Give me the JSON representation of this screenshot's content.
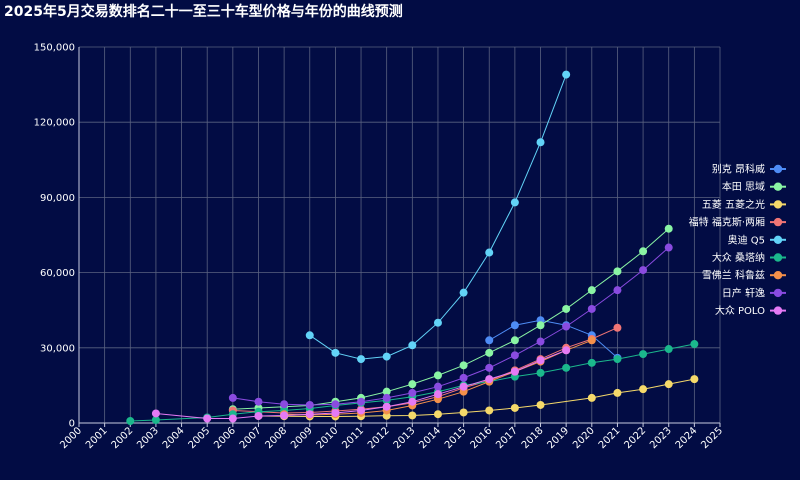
{
  "chart_data": {
    "type": "line",
    "title": "2025年5月交易数排名二十一至三十车型价格与年份的曲线预测",
    "xlabel": "",
    "ylabel": "",
    "xlim": [
      2000,
      2025
    ],
    "ylim": [
      0,
      150000
    ],
    "x_ticks": [
      2000,
      2001,
      2002,
      2003,
      2004,
      2005,
      2006,
      2007,
      2008,
      2009,
      2010,
      2011,
      2012,
      2013,
      2014,
      2015,
      2016,
      2017,
      2018,
      2019,
      2020,
      2021,
      2022,
      2023,
      2024,
      2025
    ],
    "y_ticks": [
      {
        "value": 0,
        "label": "0"
      },
      {
        "value": 30000,
        "label": "30,000"
      },
      {
        "value": 60000,
        "label": "60,000"
      },
      {
        "value": 90000,
        "label": "90,000"
      },
      {
        "value": 120000,
        "label": "120,000"
      },
      {
        "value": 150000,
        "label": "150,000"
      }
    ],
    "grid": true,
    "legend_position": "right",
    "series": [
      {
        "name": "别克 昂科威",
        "color": "#4e8cf5",
        "points": [
          [
            2016,
            33000
          ],
          [
            2017,
            39000
          ],
          [
            2018,
            41000
          ],
          [
            2019,
            39000
          ],
          [
            2020,
            35000
          ],
          [
            2021,
            26000
          ]
        ]
      },
      {
        "name": "本田 思域",
        "color": "#8af5a4",
        "points": [
          [
            2006,
            5500
          ],
          [
            2007,
            6000
          ],
          [
            2008,
            6500
          ],
          [
            2009,
            7000
          ],
          [
            2010,
            8500
          ],
          [
            2011,
            10000
          ],
          [
            2012,
            12500
          ],
          [
            2013,
            15500
          ],
          [
            2014,
            19000
          ],
          [
            2015,
            23000
          ],
          [
            2016,
            28000
          ],
          [
            2017,
            33000
          ],
          [
            2018,
            39000
          ],
          [
            2019,
            45500
          ],
          [
            2020,
            53000
          ],
          [
            2021,
            60500
          ],
          [
            2022,
            68500
          ],
          [
            2023,
            77500
          ]
        ]
      },
      {
        "name": "五菱 五菱之光",
        "color": "#f5d96a",
        "points": [
          [
            2007,
            2800
          ],
          [
            2008,
            2700
          ],
          [
            2009,
            2600
          ],
          [
            2010,
            2600
          ],
          [
            2011,
            2700
          ],
          [
            2012,
            2900
          ],
          [
            2013,
            3000
          ],
          [
            2014,
            3500
          ],
          [
            2015,
            4200
          ],
          [
            2016,
            5000
          ],
          [
            2017,
            6000
          ],
          [
            2018,
            7200
          ],
          [
            2020,
            10000
          ],
          [
            2021,
            12000
          ],
          [
            2022,
            13500
          ],
          [
            2023,
            15500
          ],
          [
            2024,
            17500
          ]
        ]
      },
      {
        "name": "福特 福克斯·两厢",
        "color": "#f07575",
        "points": [
          [
            2006,
            5000
          ],
          [
            2007,
            4500
          ],
          [
            2008,
            4000
          ],
          [
            2009,
            4200
          ],
          [
            2010,
            4800
          ],
          [
            2011,
            5500
          ],
          [
            2012,
            6500
          ],
          [
            2013,
            8000
          ],
          [
            2014,
            10500
          ],
          [
            2015,
            14000
          ],
          [
            2016,
            17000
          ],
          [
            2017,
            21000
          ],
          [
            2018,
            25500
          ],
          [
            2019,
            30000
          ],
          [
            2020,
            33500
          ],
          [
            2021,
            38000
          ]
        ]
      },
      {
        "name": "奥迪 Q5",
        "color": "#62d3f7",
        "points": [
          [
            2009,
            35000
          ],
          [
            2010,
            28000
          ],
          [
            2011,
            25500
          ],
          [
            2012,
            26500
          ],
          [
            2013,
            31000
          ],
          [
            2014,
            40000
          ],
          [
            2015,
            52000
          ],
          [
            2016,
            68000
          ],
          [
            2017,
            88000
          ],
          [
            2018,
            112000
          ],
          [
            2019,
            139000
          ]
        ]
      },
      {
        "name": "大众 桑塔纳",
        "color": "#1bb88c",
        "points": [
          [
            2002,
            800
          ],
          [
            2003,
            1200
          ],
          [
            2005,
            2200
          ],
          [
            2006,
            3500
          ],
          [
            2007,
            4500
          ],
          [
            2008,
            5000
          ],
          [
            2009,
            5800
          ],
          [
            2010,
            7000
          ],
          [
            2011,
            8000
          ],
          [
            2012,
            9000
          ],
          [
            2013,
            10500
          ],
          [
            2014,
            12500
          ],
          [
            2015,
            15000
          ],
          [
            2016,
            16500
          ],
          [
            2017,
            18500
          ],
          [
            2018,
            20000
          ],
          [
            2019,
            22000
          ],
          [
            2020,
            24000
          ],
          [
            2021,
            25500
          ],
          [
            2022,
            27500
          ],
          [
            2023,
            29500
          ],
          [
            2024,
            31500
          ]
        ]
      },
      {
        "name": "雪佛兰 科鲁兹",
        "color": "#f5904a",
        "points": [
          [
            2008,
            3500
          ],
          [
            2009,
            3200
          ],
          [
            2010,
            3500
          ],
          [
            2011,
            4000
          ],
          [
            2012,
            5000
          ],
          [
            2013,
            7000
          ],
          [
            2014,
            9500
          ],
          [
            2015,
            12500
          ],
          [
            2016,
            16500
          ],
          [
            2017,
            20500
          ],
          [
            2018,
            24500
          ],
          [
            2019,
            29000
          ],
          [
            2020,
            33000
          ]
        ]
      },
      {
        "name": "日产 轩逸",
        "color": "#8a4be0",
        "points": [
          [
            2006,
            10000
          ],
          [
            2007,
            8500
          ],
          [
            2008,
            7500
          ],
          [
            2009,
            7200
          ],
          [
            2010,
            7500
          ],
          [
            2011,
            8500
          ],
          [
            2012,
            10000
          ],
          [
            2013,
            12000
          ],
          [
            2014,
            14500
          ],
          [
            2015,
            18000
          ],
          [
            2016,
            22000
          ],
          [
            2017,
            27000
          ],
          [
            2018,
            32500
          ],
          [
            2019,
            38500
          ],
          [
            2020,
            45500
          ],
          [
            2021,
            53000
          ],
          [
            2022,
            61000
          ],
          [
            2023,
            70000
          ]
        ]
      },
      {
        "name": "大众 POLO",
        "color": "#e57af5",
        "points": [
          [
            2003,
            3800
          ],
          [
            2005,
            1800
          ],
          [
            2006,
            1800
          ],
          [
            2007,
            2800
          ],
          [
            2008,
            3000
          ],
          [
            2009,
            3500
          ],
          [
            2010,
            4000
          ],
          [
            2011,
            5000
          ],
          [
            2012,
            6500
          ],
          [
            2013,
            8500
          ],
          [
            2014,
            11500
          ],
          [
            2015,
            14500
          ],
          [
            2016,
            17500
          ],
          [
            2017,
            20500
          ],
          [
            2018,
            25000
          ],
          [
            2019,
            29000
          ]
        ]
      }
    ]
  }
}
